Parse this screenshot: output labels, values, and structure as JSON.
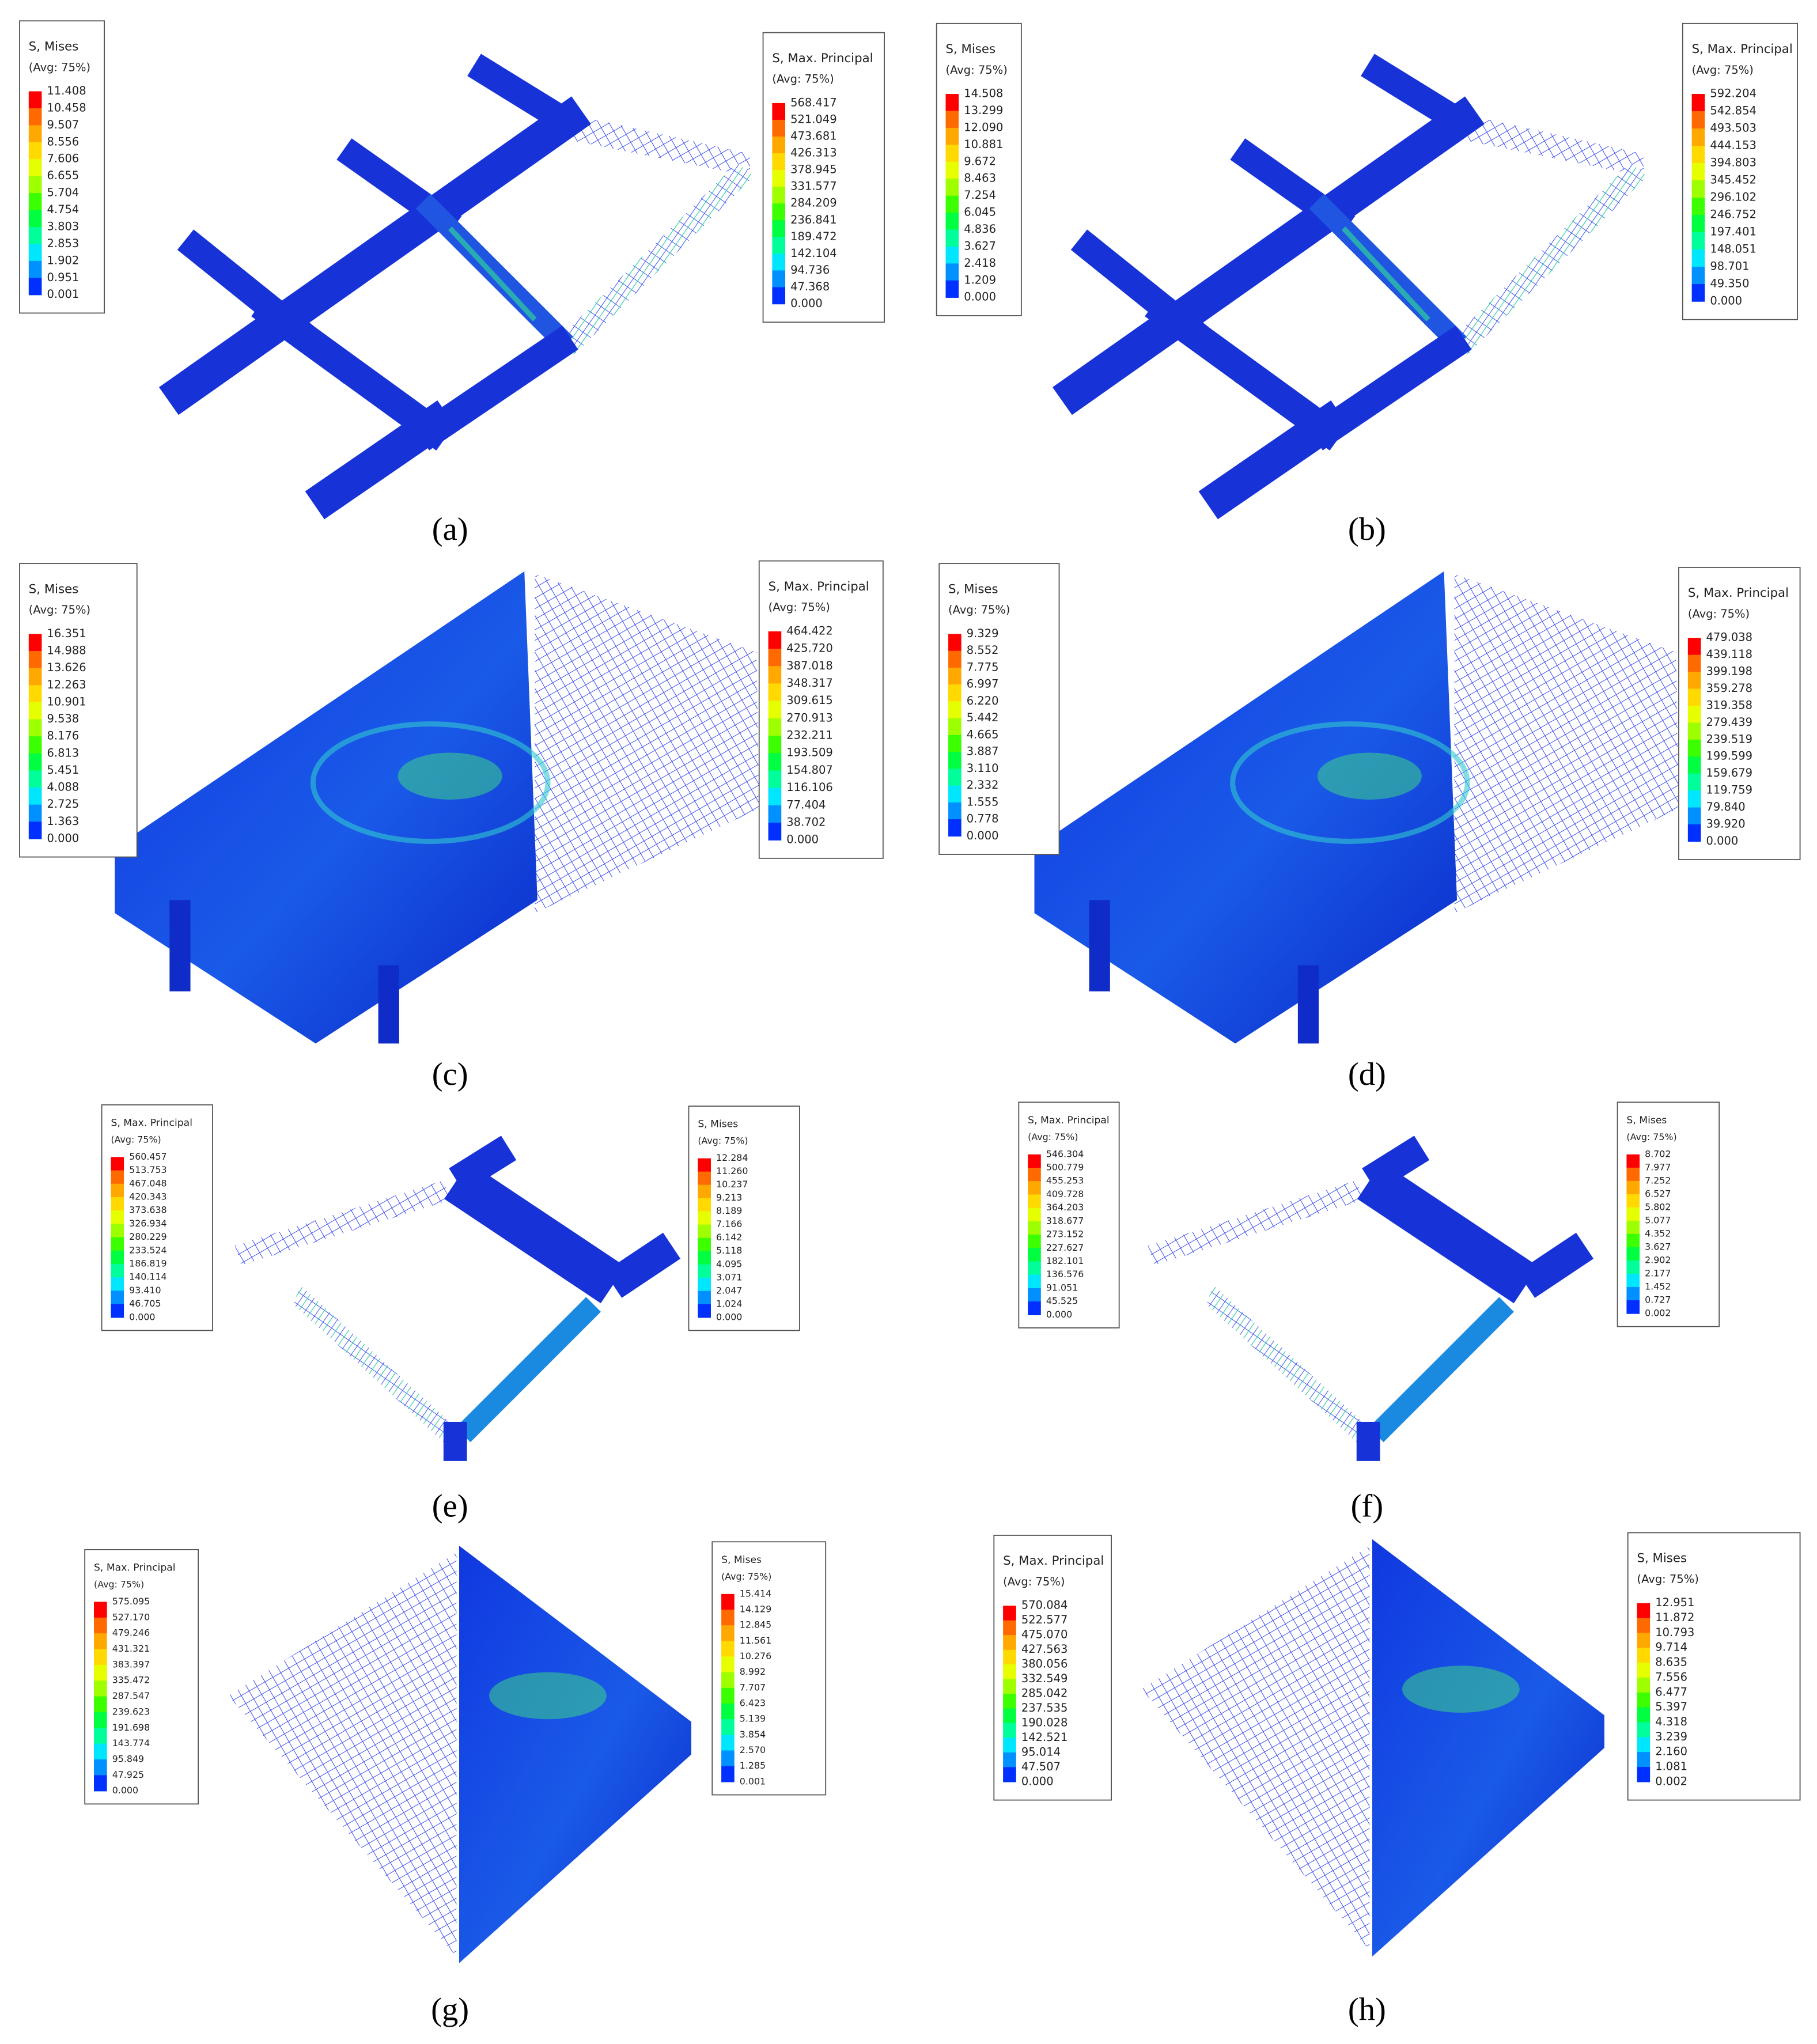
{
  "panels": [
    {
      "label": "(a)",
      "legends": [
        {
          "title": "S, Mises",
          "subtitle": "(Avg: 75%)",
          "values": [
            "11.408",
            "10.458",
            "9.507",
            "8.556",
            "7.606",
            "6.655",
            "5.704",
            "4.754",
            "3.803",
            "2.853",
            "1.902",
            "0.951",
            "0.001"
          ]
        },
        {
          "title": "S, Max. Principal",
          "subtitle": "(Avg: 75%)",
          "values": [
            "568.417",
            "521.049",
            "473.681",
            "426.313",
            "378.945",
            "331.577",
            "284.209",
            "236.841",
            "189.472",
            "142.104",
            "94.736",
            "47.368",
            "0.000"
          ]
        }
      ]
    },
    {
      "label": "(b)",
      "legends": [
        {
          "title": "S, Mises",
          "subtitle": "(Avg: 75%)",
          "values": [
            "14.508",
            "13.299",
            "12.090",
            "10.881",
            "9.672",
            "8.463",
            "7.254",
            "6.045",
            "4.836",
            "3.627",
            "2.418",
            "1.209",
            "0.000"
          ]
        },
        {
          "title": "S, Max. Principal",
          "subtitle": "(Avg: 75%)",
          "values": [
            "592.204",
            "542.854",
            "493.503",
            "444.153",
            "394.803",
            "345.452",
            "296.102",
            "246.752",
            "197.401",
            "148.051",
            "98.701",
            "49.350",
            "0.000"
          ]
        }
      ]
    },
    {
      "label": "(c)",
      "legends": [
        {
          "title": "S, Mises",
          "subtitle": "(Avg: 75%)",
          "values": [
            "16.351",
            "14.988",
            "13.626",
            "12.263",
            "10.901",
            "9.538",
            "8.176",
            "6.813",
            "5.451",
            "4.088",
            "2.725",
            "1.363",
            "0.000"
          ]
        },
        {
          "title": "S, Max. Principal",
          "subtitle": "(Avg: 75%)",
          "values": [
            "464.422",
            "425.720",
            "387.018",
            "348.317",
            "309.615",
            "270.913",
            "232.211",
            "193.509",
            "154.807",
            "116.106",
            "77.404",
            "38.702",
            "0.000"
          ]
        }
      ]
    },
    {
      "label": "(d)",
      "legends": [
        {
          "title": "S, Mises",
          "subtitle": "(Avg: 75%)",
          "values": [
            "9.329",
            "8.552",
            "7.775",
            "6.997",
            "6.220",
            "5.442",
            "4.665",
            "3.887",
            "3.110",
            "2.332",
            "1.555",
            "0.778",
            "0.000"
          ]
        },
        {
          "title": "S, Max. Principal",
          "subtitle": "(Avg: 75%)",
          "values": [
            "479.038",
            "439.118",
            "399.198",
            "359.278",
            "319.358",
            "279.439",
            "239.519",
            "199.599",
            "159.679",
            "119.759",
            "79.840",
            "39.920",
            "0.000"
          ]
        }
      ]
    },
    {
      "label": "(e)",
      "legends": [
        {
          "title": "S, Max. Principal",
          "subtitle": "(Avg: 75%)",
          "values": [
            "560.457",
            "513.753",
            "467.048",
            "420.343",
            "373.638",
            "326.934",
            "280.229",
            "233.524",
            "186.819",
            "140.114",
            "93.410",
            "46.705",
            "0.000"
          ]
        },
        {
          "title": "S, Mises",
          "subtitle": "(Avg: 75%)",
          "values": [
            "12.284",
            "11.260",
            "10.237",
            "9.213",
            "8.189",
            "7.166",
            "6.142",
            "5.118",
            "4.095",
            "3.071",
            "2.047",
            "1.024",
            "0.000"
          ]
        }
      ]
    },
    {
      "label": "(f)",
      "legends": [
        {
          "title": "S, Max. Principal",
          "subtitle": "(Avg: 75%)",
          "values": [
            "546.304",
            "500.779",
            "455.253",
            "409.728",
            "364.203",
            "318.677",
            "273.152",
            "227.627",
            "182.101",
            "136.576",
            "91.051",
            "45.525",
            "0.000"
          ]
        },
        {
          "title": "S, Mises",
          "subtitle": "(Avg: 75%)",
          "values": [
            "8.702",
            "7.977",
            "7.252",
            "6.527",
            "5.802",
            "5.077",
            "4.352",
            "3.627",
            "2.902",
            "2.177",
            "1.452",
            "0.727",
            "0.002"
          ]
        }
      ]
    },
    {
      "label": "(g)",
      "legends": [
        {
          "title": "S, Max. Principal",
          "subtitle": "(Avg: 75%)",
          "values": [
            "575.095",
            "527.170",
            "479.246",
            "431.321",
            "383.397",
            "335.472",
            "287.547",
            "239.623",
            "191.698",
            "143.774",
            "95.849",
            "47.925",
            "0.000"
          ]
        },
        {
          "title": "S, Mises",
          "subtitle": "(Avg: 75%)",
          "values": [
            "15.414",
            "14.129",
            "12.845",
            "11.561",
            "10.276",
            "8.992",
            "7.707",
            "6.423",
            "5.139",
            "3.854",
            "2.570",
            "1.285",
            "0.001"
          ]
        }
      ]
    },
    {
      "label": "(h)",
      "legends": [
        {
          "title": "S, Max. Principal",
          "subtitle": "(Avg: 75%)",
          "values": [
            "570.084",
            "522.577",
            "475.070",
            "427.563",
            "380.056",
            "332.549",
            "285.042",
            "237.535",
            "190.028",
            "142.521",
            "95.014",
            "47.507",
            "0.000"
          ]
        },
        {
          "title": "S, Mises",
          "subtitle": "(Avg: 75%)",
          "values": [
            "12.951",
            "11.872",
            "10.793",
            "9.714",
            "8.635",
            "7.556",
            "6.477",
            "5.397",
            "4.318",
            "3.239",
            "2.160",
            "1.081",
            "0.002"
          ]
        }
      ]
    }
  ]
}
